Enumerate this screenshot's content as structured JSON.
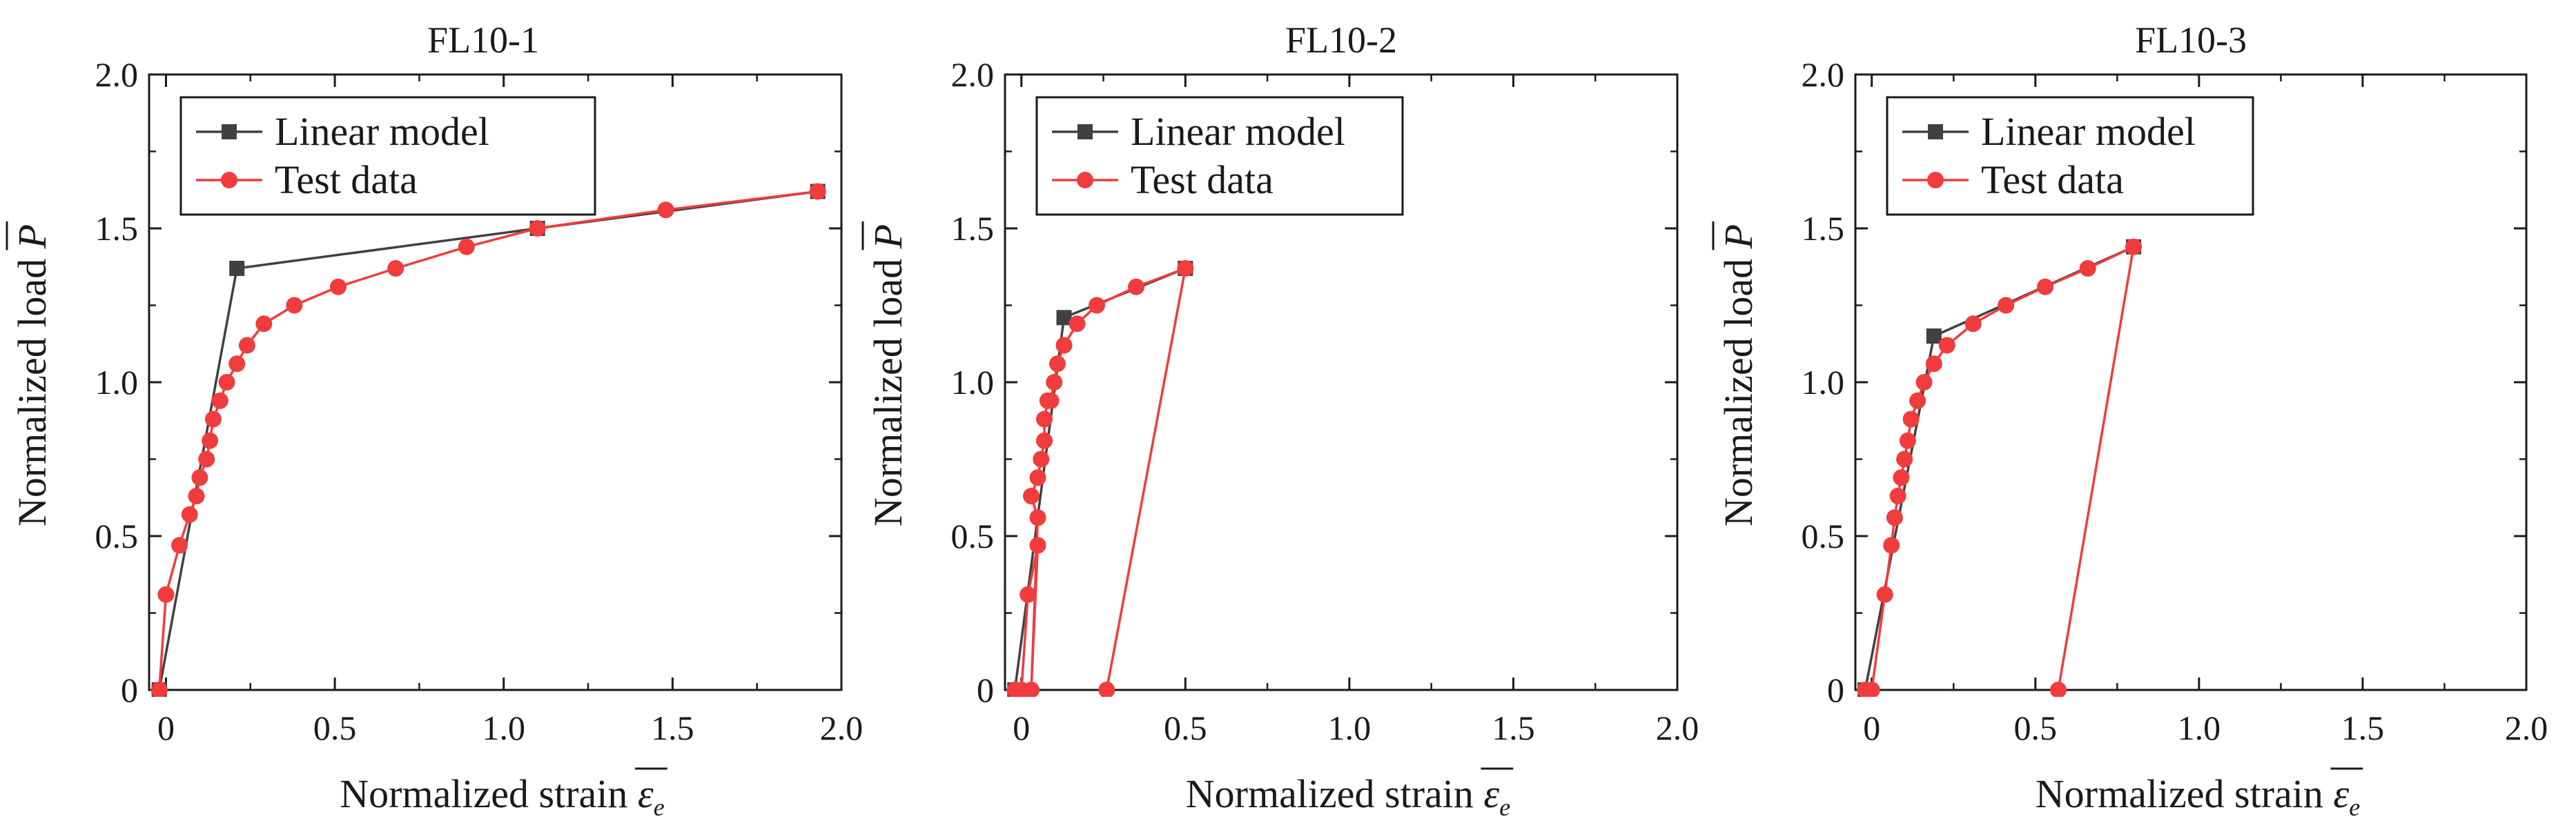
{
  "colors": {
    "linear": "#404040",
    "test": "#f03c3c",
    "axis": "#1a1a1a"
  },
  "legend_entries": [
    "Linear model",
    "Test data"
  ],
  "chart_data": [
    {
      "type": "line",
      "title": "FL10-1",
      "xlabel": "Normalized strain",
      "ylabel": "Normalized load",
      "xsymbol": "ε",
      "xsubscript": "e",
      "ysymbol": "P",
      "xlim": [
        -0.05,
        2.0
      ],
      "ylim": [
        0,
        2.0
      ],
      "xticks": [
        "0",
        "0.5",
        "1.0",
        "1.5",
        "2.0"
      ],
      "yticks": [
        "0",
        "0.5",
        "1.0",
        "1.5",
        "2.0"
      ],
      "legend": "top-left",
      "series": [
        {
          "name": "Linear model",
          "x": [
            -0.02,
            0.21,
            1.1,
            1.93
          ],
          "y": [
            0,
            1.37,
            1.5,
            1.62
          ]
        },
        {
          "name": "Test data",
          "x": [
            -0.02,
            0.0,
            0.04,
            0.07,
            0.09,
            0.1,
            0.12,
            0.13,
            0.14,
            0.16,
            0.18,
            0.21,
            0.24,
            0.29,
            0.38,
            0.51,
            0.68,
            0.89,
            1.1,
            1.48,
            1.93
          ],
          "y": [
            0,
            0.31,
            0.47,
            0.57,
            0.63,
            0.69,
            0.75,
            0.81,
            0.88,
            0.94,
            1.0,
            1.06,
            1.12,
            1.19,
            1.25,
            1.31,
            1.37,
            1.44,
            1.5,
            1.56,
            1.62
          ]
        }
      ]
    },
    {
      "type": "line",
      "title": "FL10-2",
      "xlabel": "Normalized strain",
      "ylabel": "Normalized load",
      "xsymbol": "ε",
      "xsubscript": "e",
      "ysymbol": "P",
      "xlim": [
        -0.05,
        2.0
      ],
      "ylim": [
        0,
        2.0
      ],
      "xticks": [
        "0",
        "0.5",
        "1.0",
        "1.5",
        "2.0"
      ],
      "yticks": [
        "0",
        "0.5",
        "1.0",
        "1.5",
        "2.0"
      ],
      "legend": "top-left",
      "series": [
        {
          "name": "Linear model",
          "x": [
            -0.02,
            0.13,
            0.5
          ],
          "y": [
            0,
            1.21,
            1.37
          ]
        },
        {
          "name": "Test data",
          "x": [
            -0.02,
            0.0,
            0.02,
            0.05,
            0.03,
            0.05,
            0.03,
            0.05,
            0.06,
            0.07,
            0.07,
            0.08,
            0.09,
            0.1,
            0.11,
            0.13,
            0.17,
            0.23,
            0.35,
            0.5,
            0.26
          ],
          "y": [
            0,
            0,
            0.31,
            0.47,
            0,
            0.56,
            0.63,
            0.69,
            0.75,
            0.81,
            0.88,
            0.94,
            0.94,
            1.0,
            1.06,
            1.12,
            1.19,
            1.25,
            1.31,
            1.37,
            0
          ]
        }
      ]
    },
    {
      "type": "line",
      "title": "FL10-3",
      "xlabel": "Normalized strain",
      "ylabel": "Normalized load",
      "xsymbol": "ε",
      "xsubscript": "e",
      "ysymbol": "P",
      "xlim": [
        -0.05,
        2.0
      ],
      "ylim": [
        0,
        2.0
      ],
      "xticks": [
        "0",
        "0.5",
        "1.0",
        "1.5",
        "2.0"
      ],
      "yticks": [
        "0",
        "0.5",
        "1.0",
        "1.5",
        "2.0"
      ],
      "legend": "top-left",
      "series": [
        {
          "name": "Linear model",
          "x": [
            -0.02,
            0.19,
            0.8
          ],
          "y": [
            0,
            1.15,
            1.44
          ]
        },
        {
          "name": "Test data",
          "x": [
            -0.02,
            0.0,
            0.04,
            0.06,
            0.07,
            0.08,
            0.09,
            0.1,
            0.11,
            0.12,
            0.14,
            0.16,
            0.19,
            0.23,
            0.31,
            0.41,
            0.53,
            0.66,
            0.8,
            0.57
          ],
          "y": [
            0,
            0,
            0.31,
            0.47,
            0.56,
            0.63,
            0.69,
            0.75,
            0.81,
            0.88,
            0.94,
            1.0,
            1.06,
            1.12,
            1.19,
            1.25,
            1.31,
            1.37,
            1.44,
            0
          ]
        }
      ]
    }
  ]
}
